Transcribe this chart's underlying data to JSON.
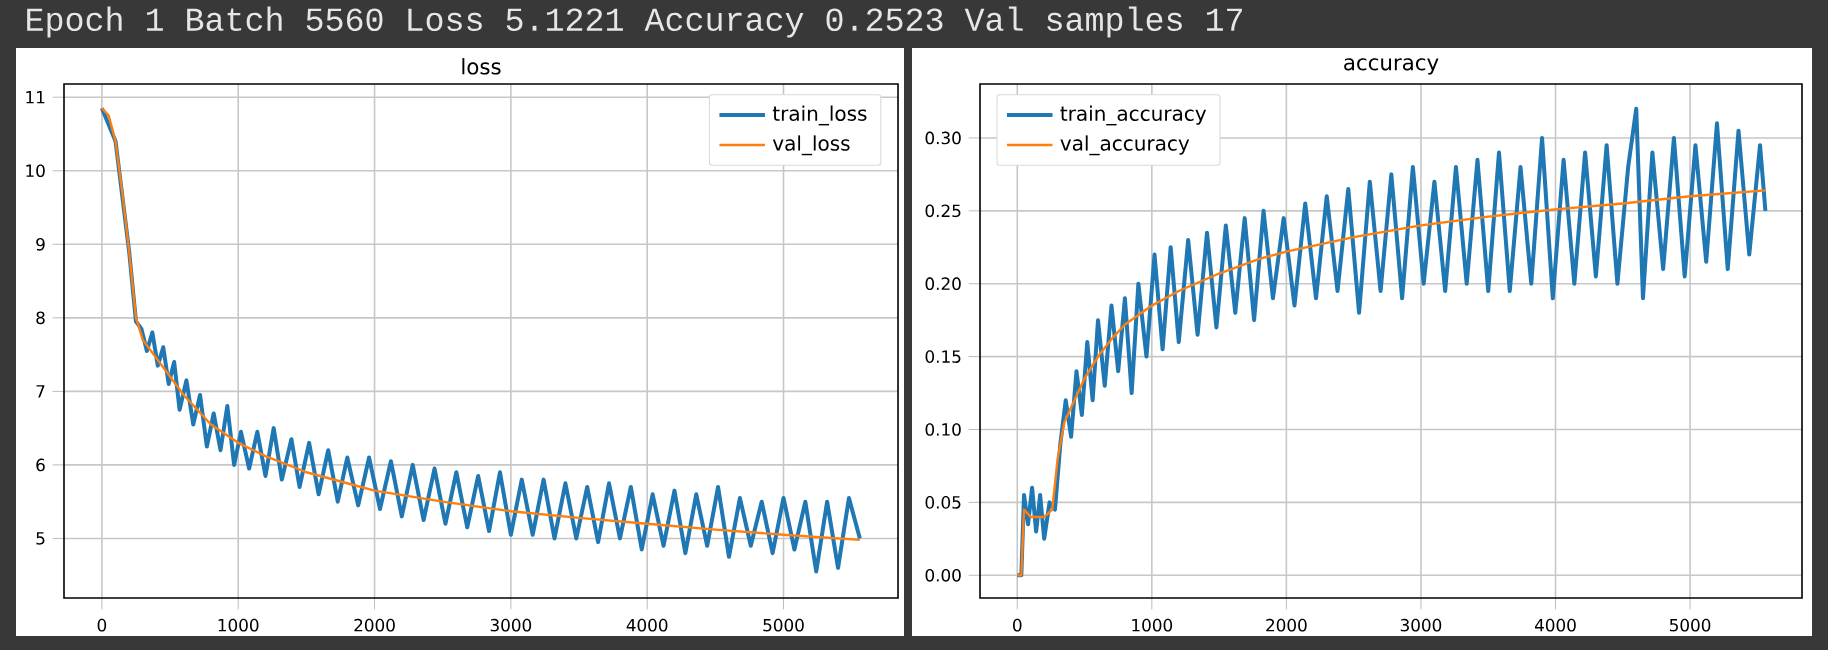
{
  "chart_data": [
    {
      "type": "line",
      "title": "loss",
      "annotations": [
        "Epoch 1 Batch 5560 Loss 5.1221        Accuracy 0.2523 Val samples 17"
      ],
      "xlim": [
        -278,
        5840
      ],
      "ylim": [
        4.19,
        11.18
      ],
      "xticks": [
        0,
        1000,
        2000,
        3000,
        4000,
        5000
      ],
      "yticks": [
        5,
        6,
        7,
        8,
        9,
        10,
        11
      ],
      "grid": true,
      "legend": "top right",
      "series": [
        {
          "name": "train_loss",
          "color": "#1f77b4",
          "x": [
            0,
            100,
            200,
            250,
            290,
            330,
            370,
            410,
            450,
            490,
            530,
            570,
            620,
            670,
            720,
            770,
            820,
            870,
            920,
            970,
            1020,
            1080,
            1140,
            1200,
            1260,
            1320,
            1390,
            1450,
            1520,
            1590,
            1660,
            1730,
            1800,
            1880,
            1960,
            2040,
            2120,
            2200,
            2280,
            2360,
            2440,
            2520,
            2600,
            2680,
            2760,
            2840,
            2920,
            3000,
            3080,
            3160,
            3240,
            3320,
            3400,
            3480,
            3560,
            3640,
            3720,
            3800,
            3880,
            3960,
            4040,
            4120,
            4200,
            4280,
            4360,
            4440,
            4520,
            4600,
            4680,
            4760,
            4840,
            4920,
            5000,
            5080,
            5160,
            5240,
            5320,
            5400,
            5480,
            5560
          ],
          "values": [
            10.85,
            10.4,
            8.9,
            7.95,
            7.85,
            7.55,
            7.8,
            7.35,
            7.6,
            7.1,
            7.4,
            6.75,
            7.15,
            6.55,
            6.95,
            6.25,
            6.7,
            6.2,
            6.8,
            6.0,
            6.45,
            5.95,
            6.45,
            5.85,
            6.5,
            5.8,
            6.35,
            5.7,
            6.3,
            5.6,
            6.2,
            5.5,
            6.1,
            5.45,
            6.1,
            5.4,
            6.05,
            5.3,
            6.0,
            5.25,
            5.95,
            5.2,
            5.9,
            5.15,
            5.85,
            5.1,
            5.9,
            5.05,
            5.8,
            5.05,
            5.8,
            5.0,
            5.75,
            5.0,
            5.7,
            4.95,
            5.75,
            5.0,
            5.7,
            4.85,
            5.6,
            4.9,
            5.65,
            4.8,
            5.6,
            4.9,
            5.7,
            4.75,
            5.55,
            4.9,
            5.5,
            4.8,
            5.55,
            4.85,
            5.5,
            4.55,
            5.5,
            4.6,
            5.55,
            5.0
          ]
        },
        {
          "name": "val_loss",
          "color": "#ff7f0e",
          "x": [
            0,
            50,
            100,
            150,
            200,
            250,
            300,
            400,
            500,
            600,
            700,
            800,
            1000,
            1200,
            1500,
            1800,
            2000,
            2500,
            3000,
            3500,
            4000,
            4500,
            5000,
            5560
          ],
          "values": [
            10.85,
            10.75,
            10.4,
            9.7,
            8.9,
            8.0,
            7.7,
            7.45,
            7.2,
            6.95,
            6.75,
            6.55,
            6.3,
            6.12,
            5.9,
            5.75,
            5.65,
            5.5,
            5.37,
            5.28,
            5.2,
            5.12,
            5.05,
            4.98
          ]
        }
      ]
    },
    {
      "type": "line",
      "title": "accuracy",
      "xlim": [
        -277,
        5832
      ],
      "ylim": [
        -0.0156,
        0.337
      ],
      "xticks": [
        0,
        1000,
        2000,
        3000,
        4000,
        5000
      ],
      "yticks": [
        {
          "value": 0,
          "label": "0.00"
        },
        {
          "value": 0.05,
          "label": "0.05"
        },
        {
          "value": 0.1,
          "label": "0.10"
        },
        {
          "value": 0.15,
          "label": "0.15"
        },
        {
          "value": 0.2,
          "label": "0.20"
        },
        {
          "value": 0.25,
          "label": "0.25"
        },
        {
          "value": 0.3,
          "label": "0.30"
        }
      ],
      "grid": true,
      "legend": "top left",
      "series": [
        {
          "name": "train_accuracy",
          "color": "#1f77b4",
          "x": [
            0,
            30,
            50,
            80,
            110,
            140,
            170,
            200,
            240,
            280,
            320,
            360,
            400,
            440,
            480,
            520,
            560,
            600,
            650,
            700,
            750,
            800,
            850,
            900,
            960,
            1020,
            1080,
            1140,
            1200,
            1270,
            1340,
            1410,
            1480,
            1550,
            1620,
            1690,
            1760,
            1830,
            1900,
            1980,
            2060,
            2140,
            2220,
            2300,
            2380,
            2460,
            2540,
            2620,
            2700,
            2780,
            2860,
            2940,
            3020,
            3100,
            3180,
            3260,
            3340,
            3420,
            3500,
            3580,
            3660,
            3740,
            3820,
            3900,
            3980,
            4060,
            4140,
            4220,
            4300,
            4380,
            4460,
            4540,
            4600,
            4650,
            4720,
            4800,
            4880,
            4960,
            5040,
            5120,
            5200,
            5280,
            5360,
            5440,
            5520,
            5560
          ],
          "values": [
            0.0,
            0.0,
            0.055,
            0.035,
            0.06,
            0.03,
            0.055,
            0.025,
            0.05,
            0.045,
            0.09,
            0.12,
            0.095,
            0.14,
            0.11,
            0.16,
            0.12,
            0.175,
            0.13,
            0.185,
            0.14,
            0.19,
            0.125,
            0.2,
            0.15,
            0.22,
            0.155,
            0.225,
            0.16,
            0.23,
            0.165,
            0.235,
            0.17,
            0.24,
            0.18,
            0.245,
            0.175,
            0.25,
            0.19,
            0.245,
            0.185,
            0.255,
            0.19,
            0.26,
            0.195,
            0.265,
            0.18,
            0.27,
            0.195,
            0.275,
            0.19,
            0.28,
            0.2,
            0.27,
            0.195,
            0.28,
            0.2,
            0.285,
            0.195,
            0.29,
            0.195,
            0.28,
            0.2,
            0.3,
            0.19,
            0.285,
            0.2,
            0.29,
            0.205,
            0.295,
            0.2,
            0.28,
            0.32,
            0.19,
            0.29,
            0.21,
            0.3,
            0.205,
            0.295,
            0.215,
            0.31,
            0.21,
            0.305,
            0.22,
            0.295,
            0.25
          ]
        },
        {
          "name": "val_accuracy",
          "color": "#ff7f0e",
          "x": [
            0,
            30,
            50,
            100,
            200,
            260,
            300,
            350,
            400,
            500,
            600,
            700,
            800,
            1000,
            1200,
            1500,
            1800,
            2000,
            2500,
            3000,
            3500,
            4000,
            4500,
            5000,
            5560
          ],
          "values": [
            0.0,
            0.0,
            0.045,
            0.04,
            0.04,
            0.045,
            0.08,
            0.105,
            0.115,
            0.135,
            0.15,
            0.162,
            0.172,
            0.185,
            0.195,
            0.207,
            0.217,
            0.222,
            0.232,
            0.24,
            0.246,
            0.251,
            0.255,
            0.26,
            0.264
          ]
        }
      ]
    }
  ]
}
